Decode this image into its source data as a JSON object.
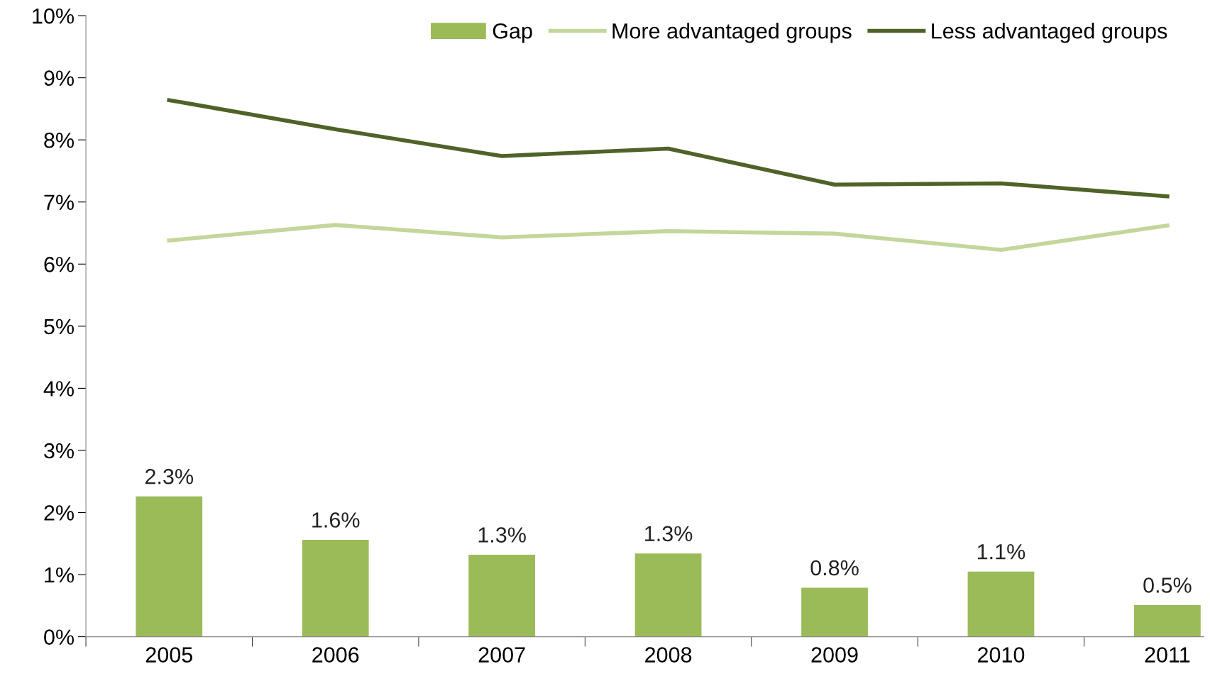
{
  "chart_data": {
    "type": "bar",
    "categories": [
      "2005",
      "2006",
      "2007",
      "2008",
      "2009",
      "2010",
      "2011"
    ],
    "series": [
      {
        "name": "Gap",
        "color": "#9bbb59",
        "values": [
          2.26,
          1.56,
          1.32,
          1.34,
          0.79,
          1.05,
          0.51
        ],
        "value_labels": [
          "2.3%",
          "1.6%",
          "1.3%",
          "1.3%",
          "0.8%",
          "1.1%",
          "0.5%"
        ]
      },
      {
        "name": "More advantaged groups",
        "type": "line",
        "color": "#c3d69b",
        "values": [
          6.38,
          6.63,
          6.43,
          6.53,
          6.49,
          6.23,
          6.62
        ]
      },
      {
        "name": "Less advantaged groups",
        "type": "line",
        "color": "#4f6228",
        "values": [
          8.64,
          8.17,
          7.74,
          7.86,
          7.28,
          7.3,
          7.09
        ]
      }
    ],
    "ylim": [
      0,
      10
    ],
    "yticks": [
      {
        "value": 0,
        "label": "0%"
      },
      {
        "value": 1,
        "label": "1%"
      },
      {
        "value": 2,
        "label": "2%"
      },
      {
        "value": 3,
        "label": "3%"
      },
      {
        "value": 4,
        "label": "4%"
      },
      {
        "value": 5,
        "label": "5%"
      },
      {
        "value": 6,
        "label": "6%"
      },
      {
        "value": 7,
        "label": "7%"
      },
      {
        "value": 8,
        "label": "8%"
      },
      {
        "value": 9,
        "label": "9%"
      },
      {
        "value": 10,
        "label": "10%"
      }
    ],
    "grid": false,
    "legend": "top right"
  }
}
